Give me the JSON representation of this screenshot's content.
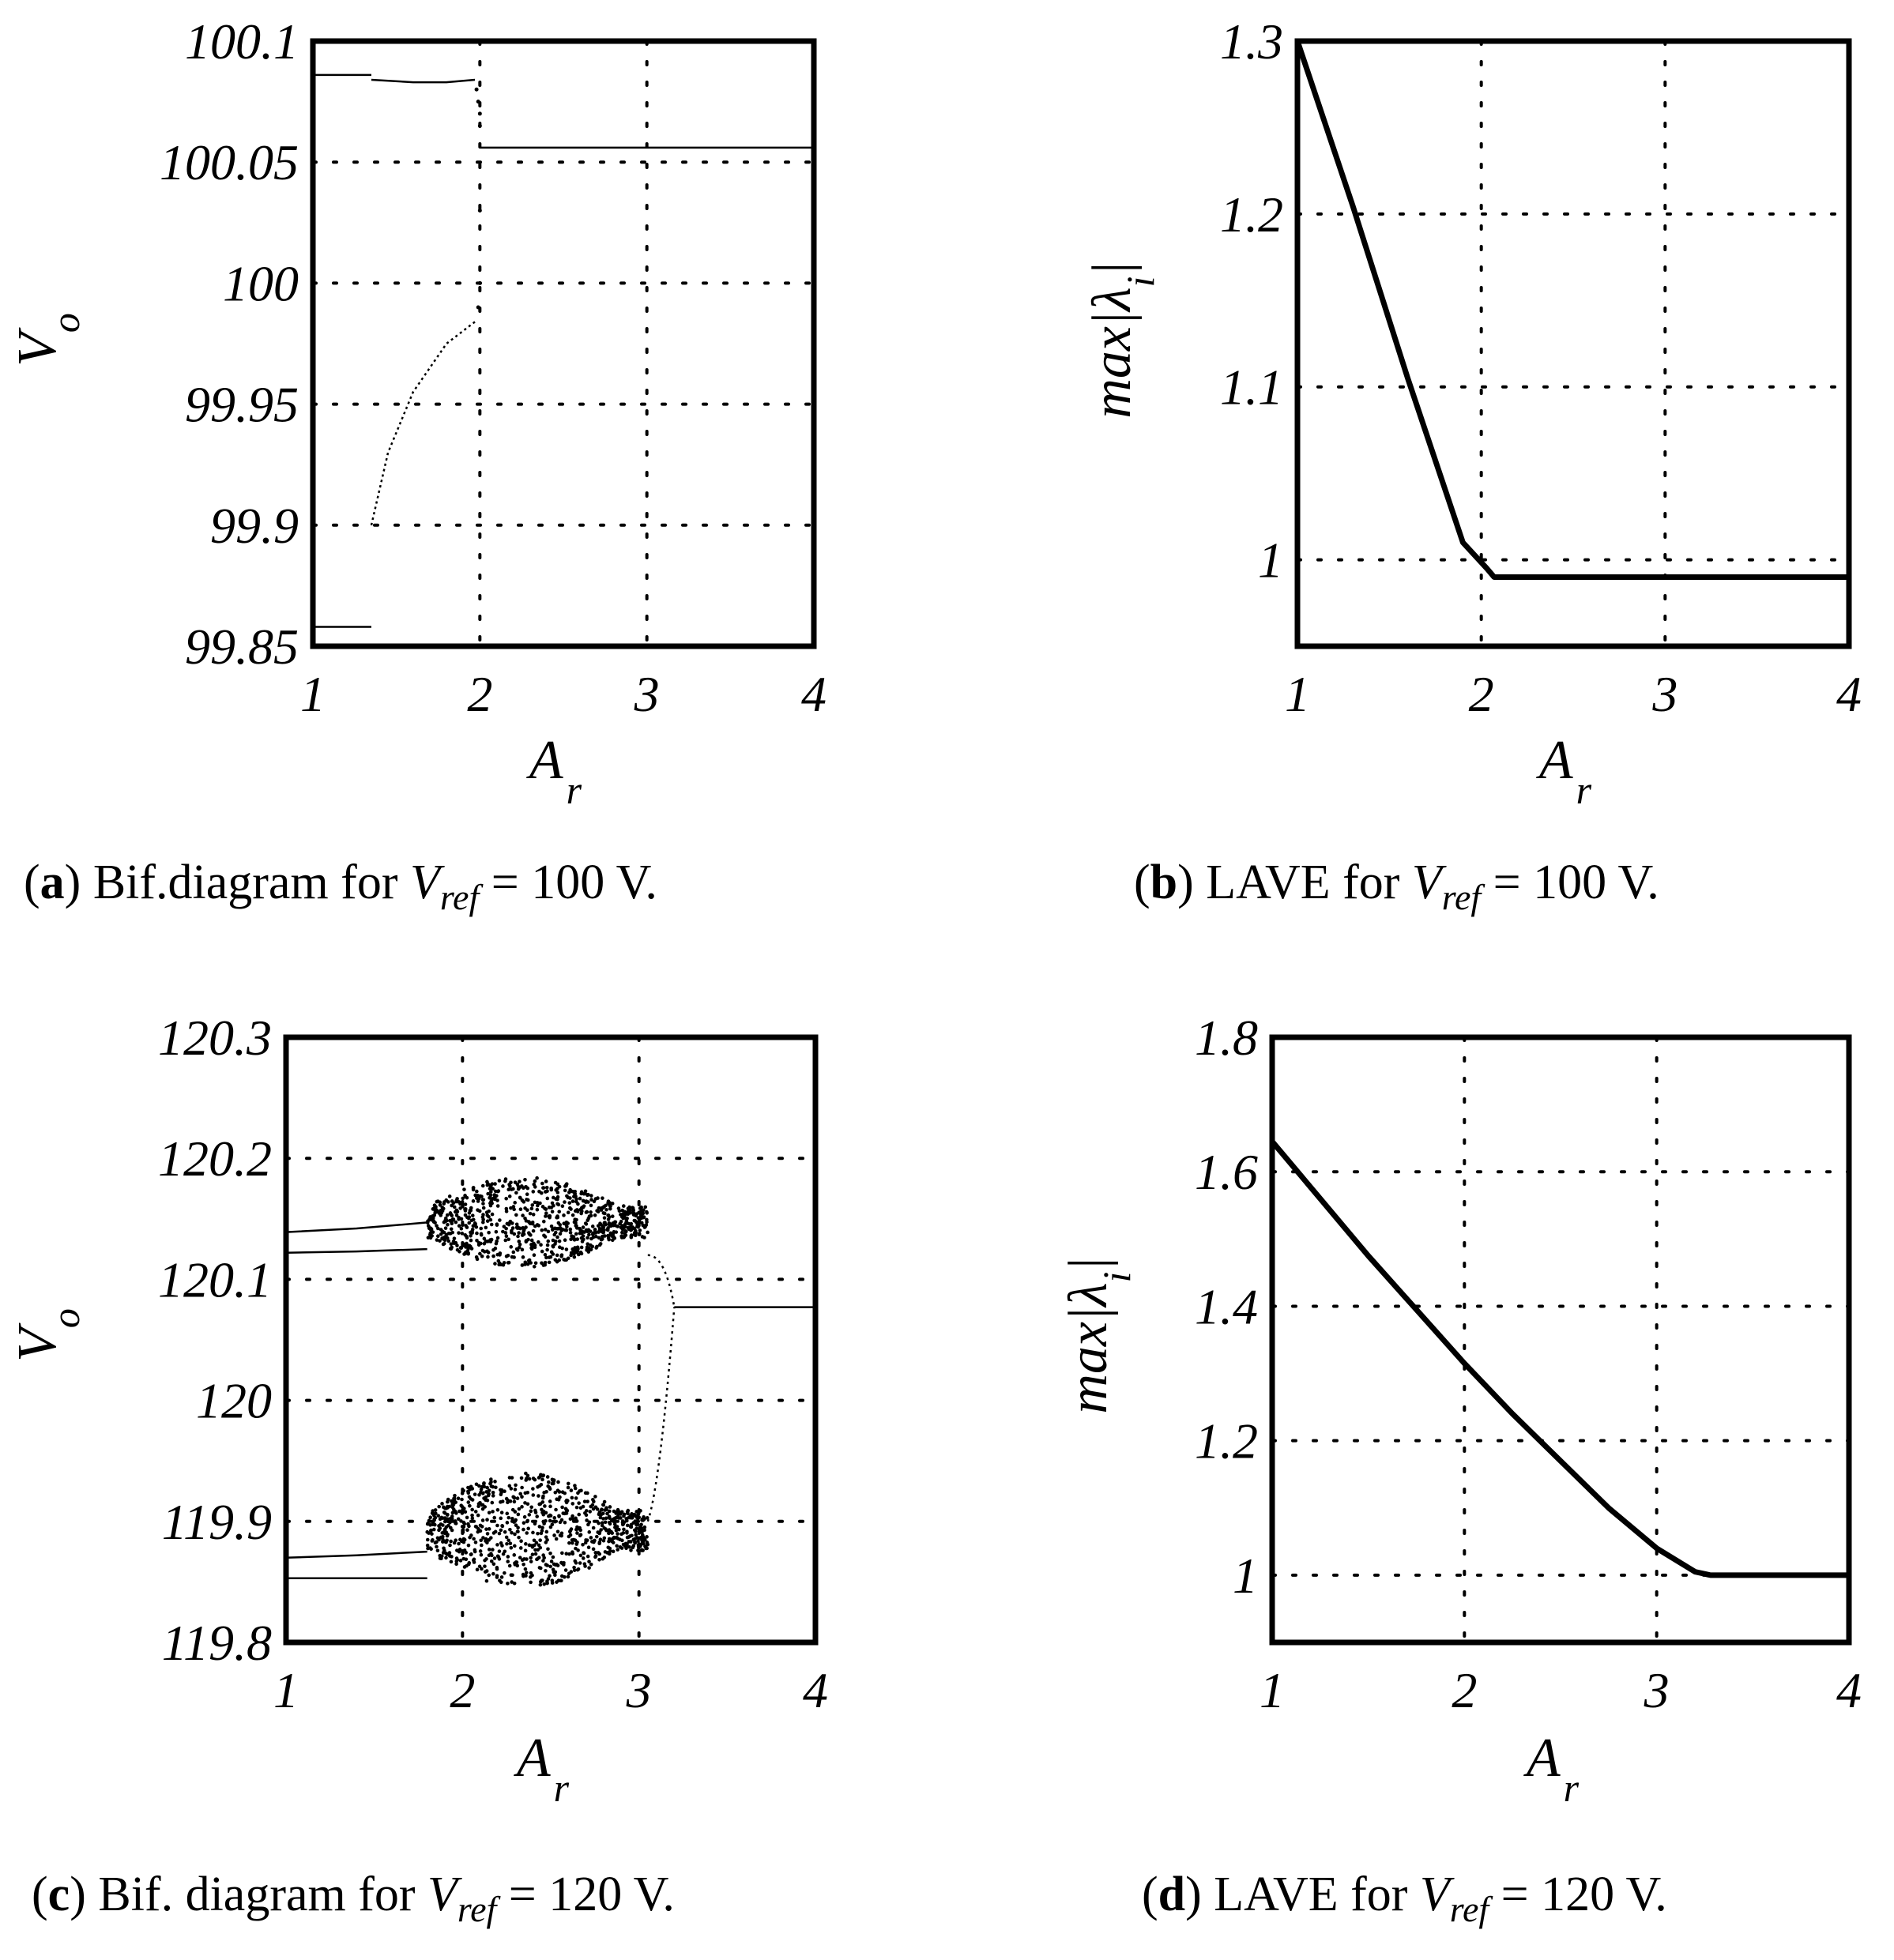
{
  "figure": {
    "panels": [
      {
        "id": "a",
        "type": "scatter",
        "caption": {
          "letter": "a",
          "prefix": "Bif.diagram for",
          "var": "V",
          "sub": "ref",
          "suffix": "= 100 V."
        },
        "xlabel": {
          "main": "A",
          "sub": "r"
        },
        "ylabel": {
          "main": "V",
          "sub": "o"
        },
        "xlim": [
          1,
          4
        ],
        "ylim": [
          99.85,
          100.1
        ],
        "xticks": [
          1,
          2,
          3,
          4
        ],
        "xtick_labels": [
          "1",
          "2",
          "3",
          "4"
        ],
        "yticks": [
          99.85,
          99.9,
          99.95,
          100,
          100.05,
          100.1
        ],
        "ytick_labels": [
          "99.85",
          "99.9",
          "99.95",
          "100",
          "100.05",
          "100.1"
        ],
        "grid": true,
        "branches": [
          {
            "name": "period-2 upper (segment 1)",
            "x": [
              1.0,
              1.35
            ],
            "y": [
              100.086,
              100.086
            ]
          },
          {
            "name": "period-2 upper (segment 2)",
            "x": [
              1.35,
              1.6,
              1.8,
              1.97
            ],
            "y": [
              100.084,
              100.083,
              100.083,
              100.084
            ]
          },
          {
            "name": "period-2 lower (segment 1)",
            "x": [
              1.0,
              1.35
            ],
            "y": [
              99.858,
              99.858
            ]
          },
          {
            "name": "period-2 lower (segment 2)",
            "x": [
              1.35,
              1.45,
              1.6,
              1.8,
              1.97
            ],
            "y": [
              99.9,
              99.93,
              99.955,
              99.975,
              99.984
            ]
          },
          {
            "name": "transition dots",
            "x": [
              1.98,
              1.99,
              2.0,
              2.0,
              1.99,
              2.0,
              2.0
            ],
            "y": [
              100.08,
              100.075,
              100.07,
              100.065,
              99.99,
              100.0,
              100.03
            ]
          },
          {
            "name": "period-1",
            "x": [
              2.0,
              4.0
            ],
            "y": [
              100.056,
              100.056
            ]
          }
        ]
      },
      {
        "id": "b",
        "type": "line",
        "caption": {
          "letter": "b",
          "prefix": "LAVE for",
          "var": "V",
          "sub": "ref",
          "suffix": "= 100 V."
        },
        "xlabel": {
          "main": "A",
          "sub": "r"
        },
        "ylabel": {
          "main": "max|λ",
          "sub": "i",
          "end": "|"
        },
        "xlim": [
          1,
          4
        ],
        "ylim": [
          0.95,
          1.3
        ],
        "xticks": [
          1,
          2,
          3,
          4
        ],
        "xtick_labels": [
          "1",
          "2",
          "3",
          "4"
        ],
        "yticks": [
          1,
          1.1,
          1.2,
          1.3
        ],
        "ytick_labels": [
          "1",
          "1.1",
          "1.2",
          "1.3"
        ],
        "grid": true,
        "series": [
          {
            "name": "max|λi|",
            "x": [
              1.0,
              1.3,
              1.6,
              1.9,
              2.03,
              2.07,
              4.0
            ],
            "y": [
              1.3,
              1.205,
              1.105,
              1.01,
              0.995,
              0.99,
              0.99
            ]
          }
        ]
      },
      {
        "id": "c",
        "type": "scatter",
        "caption": {
          "letter": "c",
          "prefix": "Bif. diagram for",
          "var": "V",
          "sub": "ref",
          "suffix": "= 120 V."
        },
        "xlabel": {
          "main": "A",
          "sub": "r"
        },
        "ylabel": {
          "main": "V",
          "sub": "o"
        },
        "xlim": [
          1,
          4
        ],
        "ylim": [
          119.8,
          120.3
        ],
        "xticks": [
          1,
          2,
          3,
          4
        ],
        "xtick_labels": [
          "1",
          "2",
          "3",
          "4"
        ],
        "yticks": [
          119.8,
          119.9,
          120,
          120.1,
          120.2,
          120.3
        ],
        "ytick_labels": [
          "119.8",
          "119.9",
          "120",
          "120.1",
          "120.2",
          "120.3"
        ],
        "grid": true,
        "branches": [
          {
            "name": "upper branch a",
            "x": [
              1.0,
              1.4,
              1.8
            ],
            "y": [
              120.139,
              120.142,
              120.147
            ]
          },
          {
            "name": "upper branch b",
            "x": [
              1.0,
              1.4,
              1.8
            ],
            "y": [
              120.122,
              120.123,
              120.125
            ]
          },
          {
            "name": "lower branch a",
            "x": [
              1.0,
              1.4,
              1.8
            ],
            "y": [
              119.87,
              119.872,
              119.875
            ]
          },
          {
            "name": "lower branch b",
            "x": [
              1.0,
              1.4,
              1.8
            ],
            "y": [
              119.853,
              119.853,
              119.853
            ]
          },
          {
            "name": "chaotic band upper",
            "x_range": [
              1.8,
              3.05
            ],
            "y_band": [
              120.11,
              120.185
            ]
          },
          {
            "name": "chaotic band lower",
            "x_range": [
              1.8,
              3.05
            ],
            "y_band": [
              119.845,
              119.94
            ]
          },
          {
            "name": "period-1",
            "x": [
              3.2,
              4.0
            ],
            "y": [
              120.077,
              120.077
            ]
          }
        ]
      },
      {
        "id": "d",
        "type": "line",
        "caption": {
          "letter": "d",
          "prefix": "LAVE for",
          "var": "V",
          "sub": "ref",
          "suffix": "= 120 V."
        },
        "xlabel": {
          "main": "A",
          "sub": "r"
        },
        "ylabel": {
          "main": "max|λ",
          "sub": "i",
          "end": "|"
        },
        "xlim": [
          1,
          4
        ],
        "ylim": [
          0.9,
          1.8
        ],
        "xticks": [
          1,
          2,
          3,
          4
        ],
        "xtick_labels": [
          "1",
          "2",
          "3",
          "4"
        ],
        "yticks": [
          1,
          1.2,
          1.4,
          1.6,
          1.8
        ],
        "ytick_labels": [
          "1",
          "1.2",
          "1.4",
          "1.6",
          "1.8"
        ],
        "grid": true,
        "series": [
          {
            "name": "max|λi|",
            "x": [
              1.0,
              1.25,
              1.5,
              1.75,
              2.0,
              2.25,
              2.5,
              2.75,
              3.0,
              3.2,
              3.28,
              4.0
            ],
            "y": [
              1.645,
              1.56,
              1.475,
              1.395,
              1.315,
              1.24,
              1.17,
              1.1,
              1.04,
              1.005,
              1.0,
              1.0
            ]
          }
        ]
      }
    ]
  }
}
